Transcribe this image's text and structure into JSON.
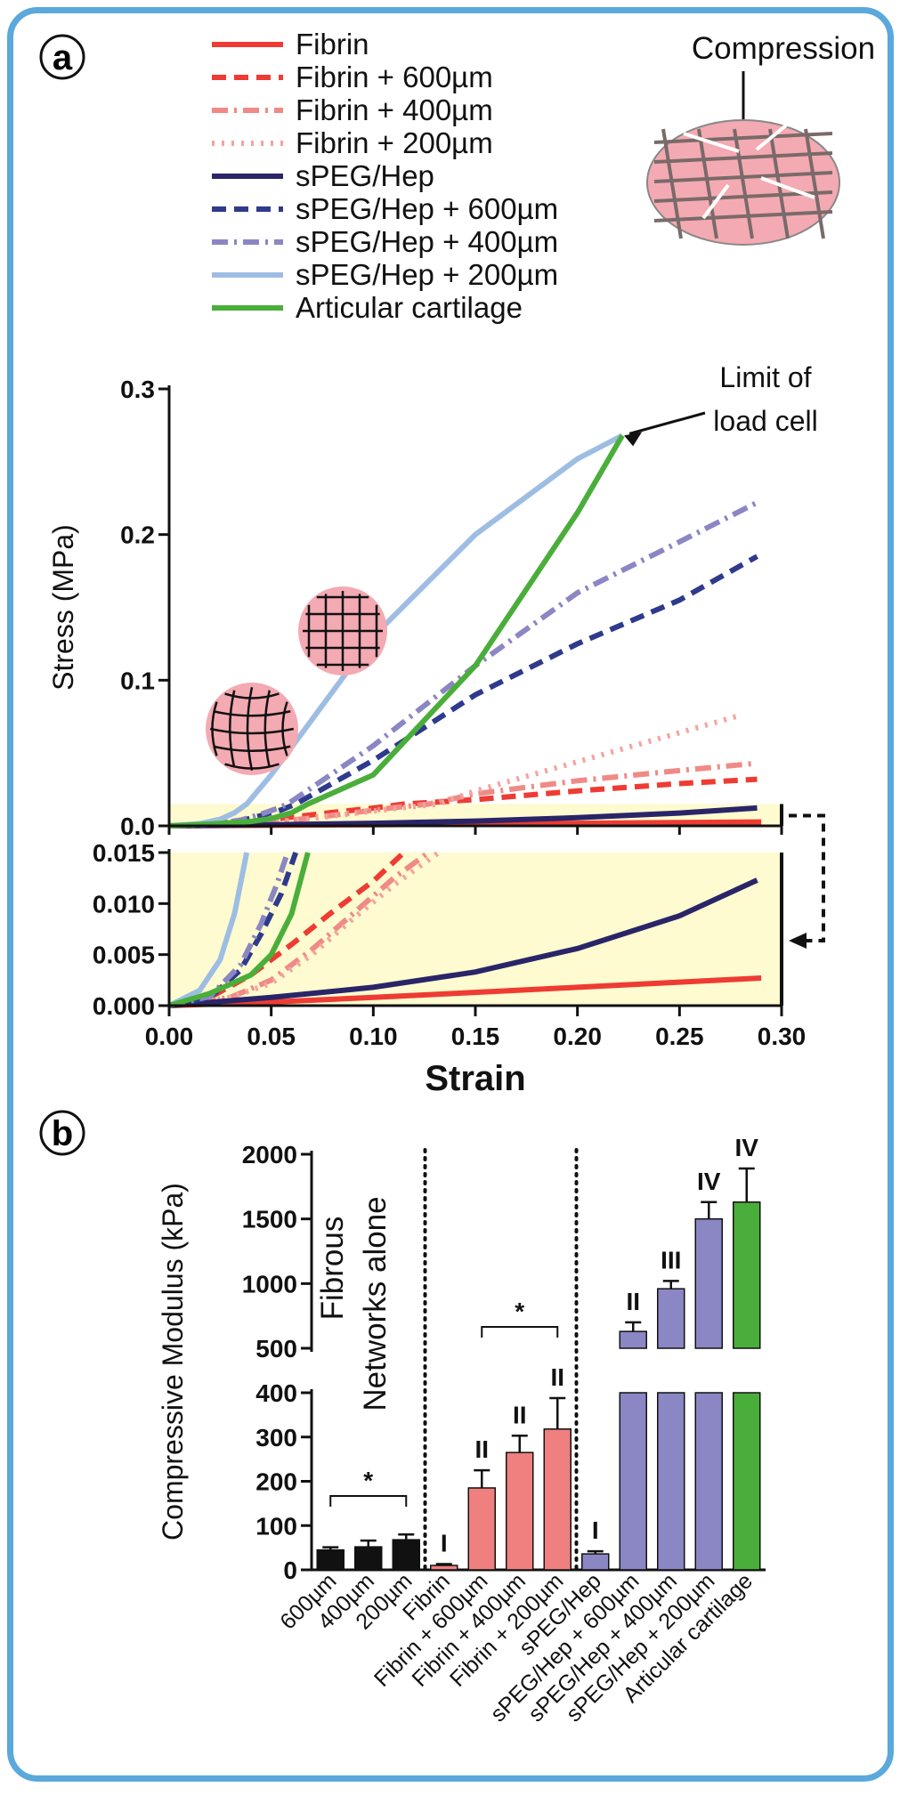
{
  "panel_a_label": "a",
  "panel_b_label": "b",
  "compression_label": "Compression",
  "limit_note": [
    "Limit of",
    "load cell"
  ],
  "fibrous_note": [
    "Fibrous",
    "Networks alone"
  ],
  "chart_data": [
    {
      "type": "line",
      "ylabel": "Stress (MPa)",
      "xlabel": "Strain",
      "xlim": [
        0,
        0.3
      ],
      "ylim": [
        0,
        0.3
      ],
      "inset_ylim": [
        0,
        0.015
      ],
      "x_ticks": [
        "0.00",
        "0.05",
        "0.10",
        "0.15",
        "0.20",
        "0.25",
        "0.30"
      ],
      "y_ticks": [
        "0.0",
        "0.1",
        "0.2",
        "0.3"
      ],
      "inset_y_ticks": [
        "0.000",
        "0.005",
        "0.010",
        "0.015"
      ],
      "series": [
        {
          "name": "Fibrin",
          "color": "#ee3b33",
          "dash": "solid",
          "points": [
            [
              0,
              0
            ],
            [
              0.05,
              0.00035
            ],
            [
              0.1,
              0.0008
            ],
            [
              0.15,
              0.0013
            ],
            [
              0.2,
              0.0018
            ],
            [
              0.25,
              0.0023
            ],
            [
              0.29,
              0.0027
            ]
          ]
        },
        {
          "name": "Fibrin + 600µm",
          "color": "#ee3b33",
          "dash": "dash",
          "points": [
            [
              0,
              0
            ],
            [
              0.02,
              0.0008
            ],
            [
              0.04,
              0.003
            ],
            [
              0.06,
              0.006
            ],
            [
              0.08,
              0.0092
            ],
            [
              0.1,
              0.0122
            ],
            [
              0.115,
              0.015
            ],
            [
              0.15,
              0.018
            ],
            [
              0.2,
              0.024
            ],
            [
              0.25,
              0.029
            ],
            [
              0.288,
              0.032
            ]
          ]
        },
        {
          "name": "Fibrin + 400µm",
          "color": "#f08a86",
          "dash": "dashdot",
          "points": [
            [
              0,
              0
            ],
            [
              0.03,
              0.0008
            ],
            [
              0.05,
              0.0025
            ],
            [
              0.07,
              0.0055
            ],
            [
              0.09,
              0.009
            ],
            [
              0.11,
              0.0125
            ],
            [
              0.127,
              0.015
            ],
            [
              0.15,
              0.022
            ],
            [
              0.2,
              0.031
            ],
            [
              0.25,
              0.038
            ],
            [
              0.288,
              0.043
            ]
          ]
        },
        {
          "name": "Fibrin + 200µm",
          "color": "#f5a39e",
          "dash": "dot",
          "points": [
            [
              0,
              0
            ],
            [
              0.03,
              0.0008
            ],
            [
              0.05,
              0.0022
            ],
            [
              0.07,
              0.005
            ],
            [
              0.09,
              0.0085
            ],
            [
              0.11,
              0.0118
            ],
            [
              0.132,
              0.015
            ],
            [
              0.15,
              0.024
            ],
            [
              0.2,
              0.044
            ],
            [
              0.25,
              0.064
            ],
            [
              0.28,
              0.076
            ]
          ]
        },
        {
          "name": "sPEG/Hep",
          "color": "#2a2568",
          "dash": "solid",
          "points": [
            [
              0,
              0
            ],
            [
              0.05,
              0.0008
            ],
            [
              0.1,
              0.0018
            ],
            [
              0.15,
              0.0033
            ],
            [
              0.2,
              0.0056
            ],
            [
              0.25,
              0.0088
            ],
            [
              0.288,
              0.0123
            ]
          ]
        },
        {
          "name": "sPEG/Hep + 600µm",
          "color": "#2e3a8c",
          "dash": "dash",
          "points": [
            [
              0,
              0
            ],
            [
              0.02,
              0.0008
            ],
            [
              0.035,
              0.0035
            ],
            [
              0.045,
              0.007
            ],
            [
              0.055,
              0.011
            ],
            [
              0.062,
              0.015
            ],
            [
              0.1,
              0.045
            ],
            [
              0.15,
              0.09
            ],
            [
              0.2,
              0.125
            ],
            [
              0.25,
              0.155
            ],
            [
              0.288,
              0.185
            ]
          ]
        },
        {
          "name": "sPEG/Hep + 400µm",
          "color": "#8b86c4",
          "dash": "dashdot",
          "points": [
            [
              0,
              0
            ],
            [
              0.02,
              0.0009
            ],
            [
              0.035,
              0.004
            ],
            [
              0.045,
              0.008
            ],
            [
              0.053,
              0.012
            ],
            [
              0.058,
              0.015
            ],
            [
              0.1,
              0.055
            ],
            [
              0.15,
              0.11
            ],
            [
              0.2,
              0.16
            ],
            [
              0.25,
              0.195
            ],
            [
              0.288,
              0.222
            ]
          ]
        },
        {
          "name": "sPEG/Hep + 200µm",
          "color": "#9ebde3",
          "dash": "solid",
          "points": [
            [
              0,
              0
            ],
            [
              0.015,
              0.0015
            ],
            [
              0.025,
              0.0045
            ],
            [
              0.032,
              0.009
            ],
            [
              0.036,
              0.013
            ],
            [
              0.038,
              0.015
            ],
            [
              0.05,
              0.035
            ],
            [
              0.1,
              0.13
            ],
            [
              0.15,
              0.2
            ],
            [
              0.2,
              0.252
            ],
            [
              0.222,
              0.268
            ]
          ]
        },
        {
          "name": "Articular cartilage",
          "color": "#4aae3a",
          "dash": "solid",
          "points": [
            [
              0,
              0
            ],
            [
              0.02,
              0.0012
            ],
            [
              0.04,
              0.003
            ],
            [
              0.05,
              0.005
            ],
            [
              0.06,
              0.009
            ],
            [
              0.068,
              0.015
            ],
            [
              0.1,
              0.035
            ],
            [
              0.15,
              0.11
            ],
            [
              0.2,
              0.215
            ],
            [
              0.222,
              0.268
            ]
          ]
        }
      ]
    },
    {
      "type": "bar",
      "ylabel": "Compressive Modulus (kPa)",
      "y_ticks_lower": [
        "0",
        "100",
        "200",
        "300",
        "400"
      ],
      "y_ticks_upper": [
        "500",
        "1000",
        "1500",
        "2000"
      ],
      "categories": [
        "600µm",
        "400µm",
        "200µm",
        "Fibrin",
        "Fibrin + 600µm",
        "Fibrin + 400µm",
        "Fibrin + 200µm",
        "sPEG/Hep",
        "sPEG/Hep + 600µm",
        "sPEG/Hep + 400µm",
        "sPEG/Hep + 200µm",
        "Articular cartilage"
      ],
      "values": [
        45,
        52,
        68,
        10,
        185,
        265,
        318,
        36,
        630,
        960,
        1500,
        1630
      ],
      "errors": [
        6,
        14,
        12,
        3,
        40,
        38,
        70,
        6,
        70,
        60,
        130,
        260
      ],
      "colors": [
        "#111111",
        "#111111",
        "#111111",
        "#f08080",
        "#f08080",
        "#f08080",
        "#f08080",
        "#8b86c4",
        "#8b86c4",
        "#8b86c4",
        "#8b86c4",
        "#4aae3a"
      ],
      "grades": [
        "",
        "",
        "",
        "I",
        "II",
        "II",
        "II",
        "I",
        "II",
        "III",
        "IV",
        "IV"
      ],
      "significance": [
        "*",
        "*"
      ]
    }
  ]
}
